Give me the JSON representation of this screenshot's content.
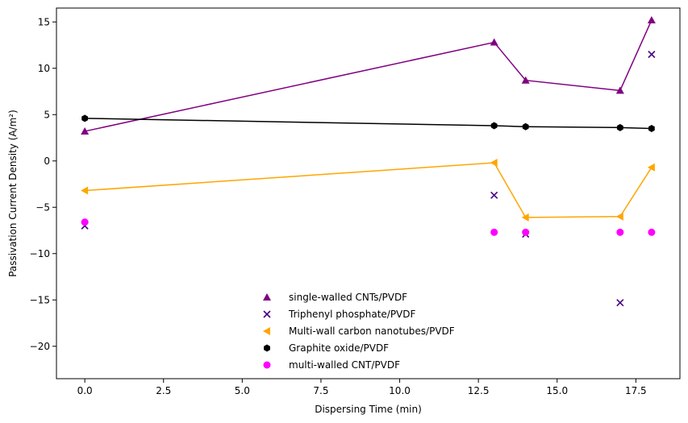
{
  "chart_data": {
    "type": "scatter",
    "xlabel": "Dispersing Time (min)",
    "ylabel": "Passivation Current Density (A/m²)",
    "xlim": [
      -0.9,
      18.9
    ],
    "ylim": [
      -23.5,
      16.5
    ],
    "xticks": [
      0.0,
      2.5,
      5.0,
      7.5,
      10.0,
      12.5,
      15.0,
      17.5
    ],
    "xtick_labels": [
      "0.0",
      "2.5",
      "5.0",
      "7.5",
      "10.0",
      "12.5",
      "15.0",
      "17.5"
    ],
    "yticks": [
      -20,
      -15,
      -10,
      -5,
      0,
      5,
      10,
      15
    ],
    "ytick_labels": [
      "−20",
      "−15",
      "−10",
      "−5",
      "0",
      "5",
      "10",
      "15"
    ],
    "grid": false,
    "legend_position": "lower-center",
    "series": [
      {
        "name": "single-walled CNTs/PVDF",
        "color": "#800080",
        "marker": "triangle-up",
        "line": true,
        "x": [
          0,
          13,
          14,
          17,
          18
        ],
        "y": [
          3.2,
          12.8,
          8.7,
          7.6,
          15.2
        ]
      },
      {
        "name": "Triphenyl phosphate/PVDF",
        "color": "#4b0082",
        "marker": "x",
        "line": false,
        "x": [
          0,
          13,
          14,
          17,
          18
        ],
        "y": [
          -7.0,
          -3.7,
          -7.9,
          -15.3,
          11.5
        ]
      },
      {
        "name": "Multi-wall carbon nanotubes/PVDF",
        "color": "#ffa500",
        "marker": "triangle-left",
        "line": true,
        "x": [
          0,
          13,
          14,
          17,
          18
        ],
        "y": [
          -3.2,
          -0.2,
          -6.1,
          -6.0,
          -0.7
        ]
      },
      {
        "name": "Graphite oxide/PVDF",
        "color": "#000000",
        "marker": "hexagon",
        "line": true,
        "x": [
          0,
          13,
          14,
          17,
          18
        ],
        "y": [
          4.6,
          3.8,
          3.7,
          3.6,
          3.5
        ]
      },
      {
        "name": "multi-walled CNT/PVDF",
        "color": "#ff00ff",
        "marker": "circle",
        "line": false,
        "x": [
          0,
          13,
          14,
          17,
          18
        ],
        "y": [
          -6.6,
          -7.7,
          -7.7,
          -7.7,
          -7.7
        ]
      }
    ]
  }
}
